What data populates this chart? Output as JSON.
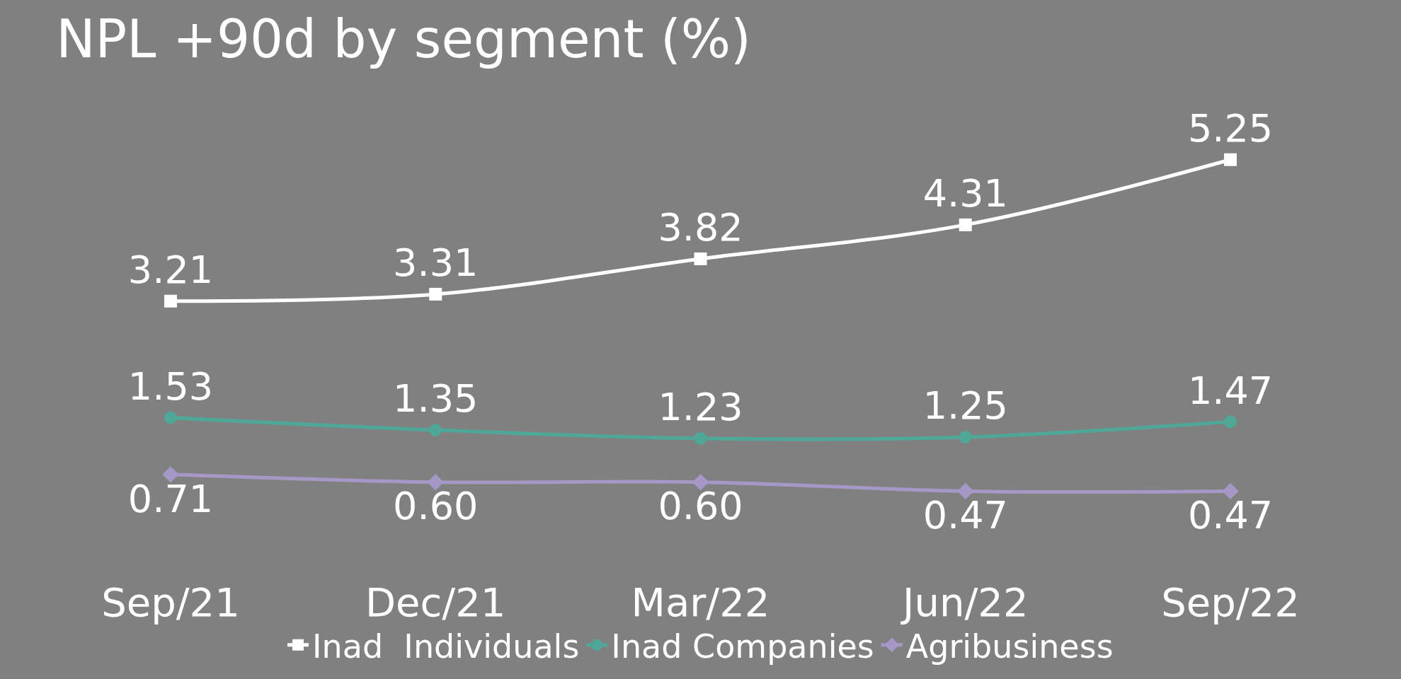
{
  "chart_data": {
    "type": "line",
    "title": "NPL +90d by segment (%)",
    "categories": [
      "Sep/21",
      "Dec/21",
      "Mar/22",
      "Jun/22",
      "Sep/22"
    ],
    "series": [
      {
        "name": "Inad  Individuals",
        "color": "#ffffff",
        "marker": "square",
        "values": [
          3.21,
          3.31,
          3.82,
          4.31,
          5.25
        ],
        "value_labels": [
          "3.21",
          "3.31",
          "3.82",
          "4.31",
          "5.25"
        ]
      },
      {
        "name": "Inad Companies",
        "color": "#4fa797",
        "marker": "circle",
        "values": [
          1.53,
          1.35,
          1.23,
          1.25,
          1.47
        ],
        "value_labels": [
          "1.53",
          "1.35",
          "1.23",
          "1.25",
          "1.47"
        ]
      },
      {
        "name": "Agribusiness",
        "color": "#a597c6",
        "marker": "diamond",
        "values": [
          0.71,
          0.6,
          0.6,
          0.47,
          0.47
        ],
        "value_labels": [
          "0.71",
          "0.60",
          "0.60",
          "0.47",
          "0.47"
        ]
      }
    ],
    "legend": "bottom",
    "grid": false
  }
}
